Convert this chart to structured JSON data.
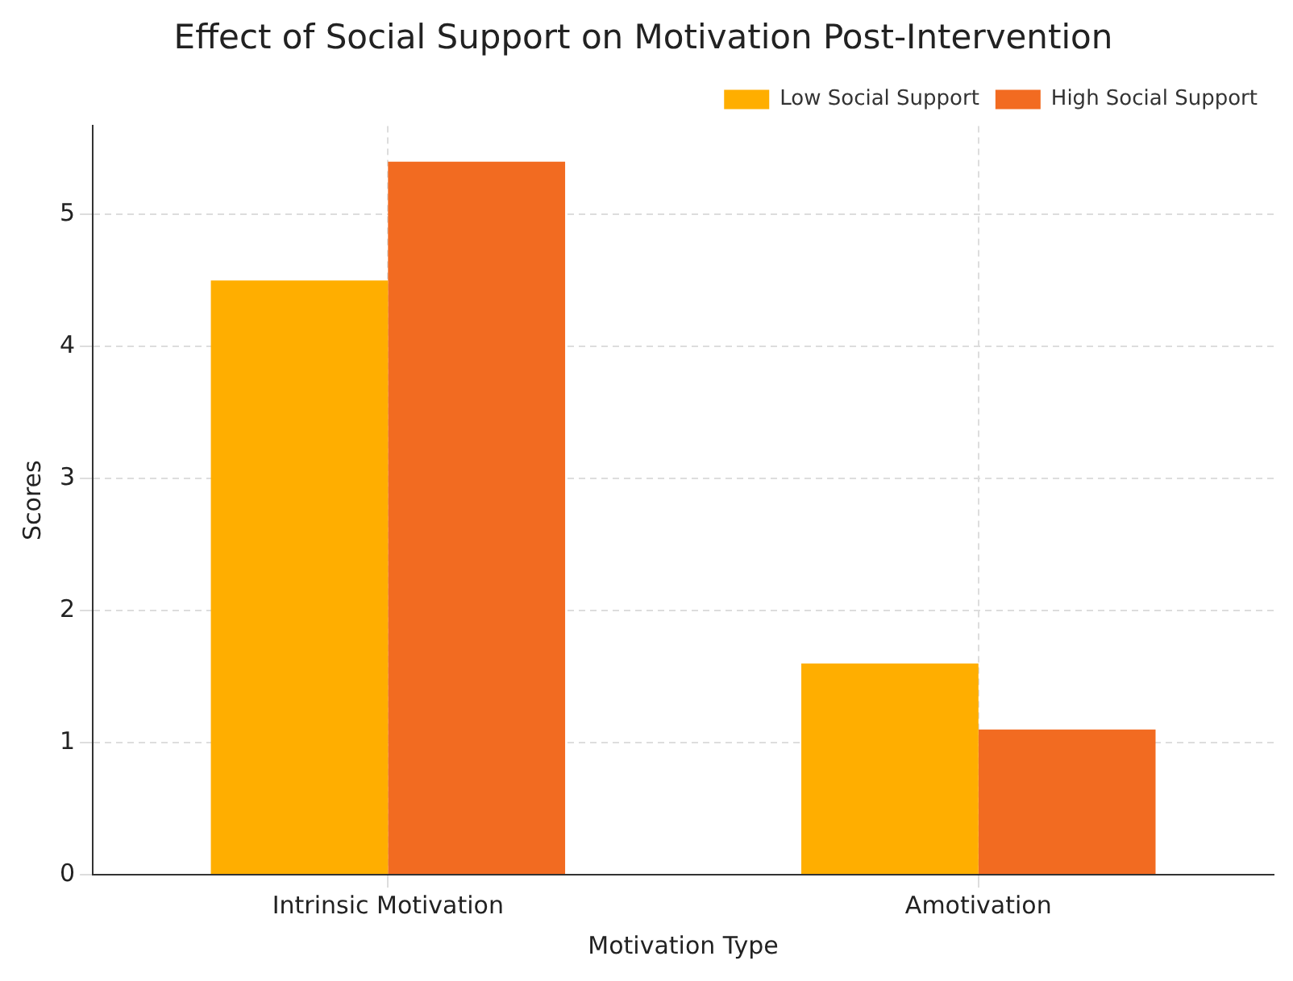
{
  "chart_data": {
    "type": "bar",
    "title": "Effect of Social Support on Motivation Post-Intervention",
    "xlabel": "Motivation Type",
    "ylabel": "Scores",
    "categories": [
      "Intrinsic Motivation",
      "Amotivation"
    ],
    "series": [
      {
        "name": "Low Social Support",
        "color": "#ffae00",
        "values": [
          4.5,
          1.6
        ]
      },
      {
        "name": "High Social Support",
        "color": "#f26b21",
        "values": [
          5.4,
          1.1
        ]
      }
    ],
    "ylim": [
      0,
      5.67
    ],
    "yticks": [
      0,
      1,
      2,
      3,
      4,
      5
    ],
    "grid": true,
    "legend": "top right"
  }
}
